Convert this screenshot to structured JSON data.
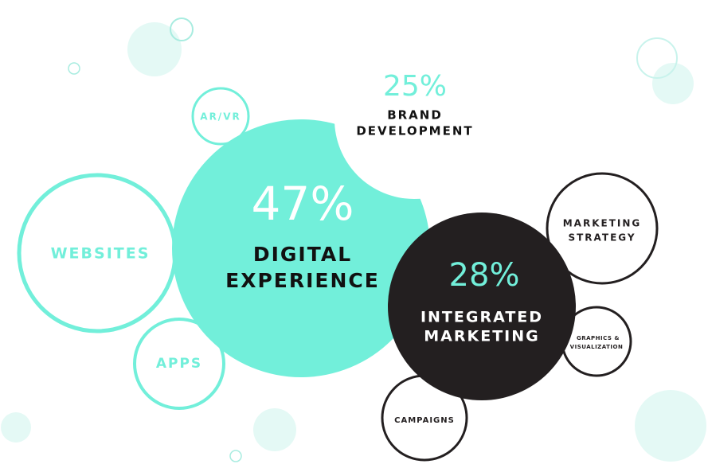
{
  "brand": {
    "percent": "25%",
    "lines": [
      "BRAND",
      "DEVELOPMENT"
    ]
  },
  "digital": {
    "percent": "47%",
    "lines": [
      "DIGITAL",
      "EXPERIENCE"
    ]
  },
  "integrated": {
    "percent": "28%",
    "lines": [
      "INTEGRATED",
      "MARKETING"
    ]
  },
  "satellites": {
    "websites": "WEBSITES",
    "apps": "APPS",
    "arvr": "AR/VR",
    "strategy": [
      "MARKETING",
      "STRATEGY"
    ],
    "graphics": [
      "GRAPHICS &",
      "VISUALIZATION"
    ],
    "campaigns": "CAMPAIGNS"
  }
}
